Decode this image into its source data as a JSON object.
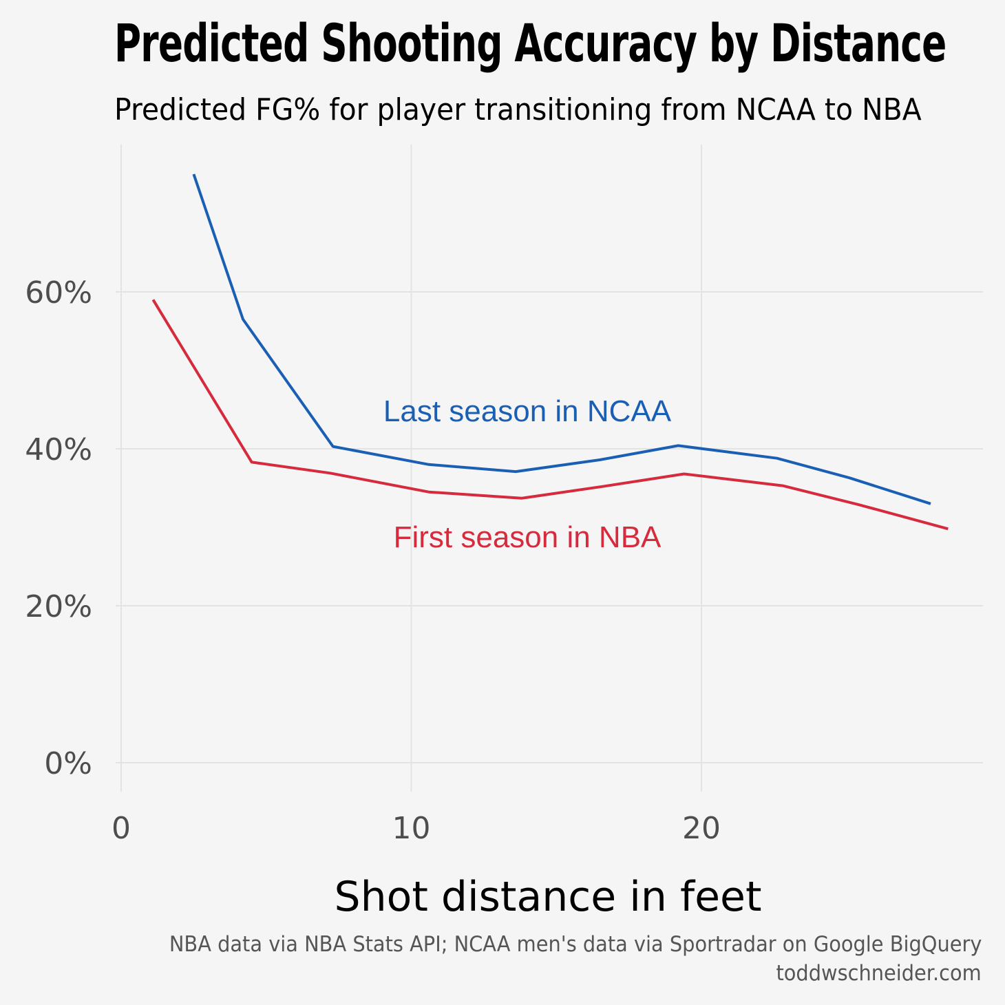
{
  "title": "Predicted Shooting Accuracy by Distance",
  "subtitle": "Predicted FG% for player transitioning from NCAA to NBA",
  "caption_line1": "NBA data via NBA Stats API; NCAA men's data via Sportradar on Google BigQuery",
  "caption_line2": "toddwschneider.com",
  "colors": {
    "background": "#f5f5f5",
    "grid": "#e3e3e3",
    "ncaa": "#1a5fb4",
    "nba": "#d62a3d"
  },
  "chart_data": {
    "type": "line",
    "title": "Predicted Shooting Accuracy by Distance",
    "subtitle": "Predicted FG% for player transitioning from NCAA to NBA",
    "xlabel": "Shot distance in feet",
    "ylabel": "",
    "xlim": [
      0,
      29.6
    ],
    "ylim": [
      -3.6,
      78.5
    ],
    "x_ticks": [
      0,
      10,
      20
    ],
    "x_tick_labels": [
      "0",
      "10",
      "20"
    ],
    "y_ticks": [
      0,
      20,
      40,
      60
    ],
    "y_tick_labels": [
      "0%",
      "20%",
      "40%",
      "60%"
    ],
    "grid": true,
    "legend": "none (direct labels)",
    "series": [
      {
        "name": "Last season in NCAA",
        "color": "#1a5fb4",
        "x": [
          2.5,
          4.2,
          7.3,
          10.6,
          13.6,
          16.5,
          19.2,
          22.6,
          25.1,
          27.9
        ],
        "y": [
          75.0,
          56.5,
          40.3,
          38.0,
          37.1,
          38.6,
          40.4,
          38.8,
          36.3,
          33.0
        ]
      },
      {
        "name": "First season in NBA",
        "color": "#d62a3d",
        "x": [
          1.1,
          4.5,
          7.2,
          10.6,
          13.8,
          16.6,
          19.4,
          22.8,
          25.4,
          28.5
        ],
        "y": [
          59.0,
          38.3,
          36.9,
          34.5,
          33.7,
          35.2,
          36.8,
          35.3,
          32.9,
          29.8
        ]
      }
    ]
  }
}
